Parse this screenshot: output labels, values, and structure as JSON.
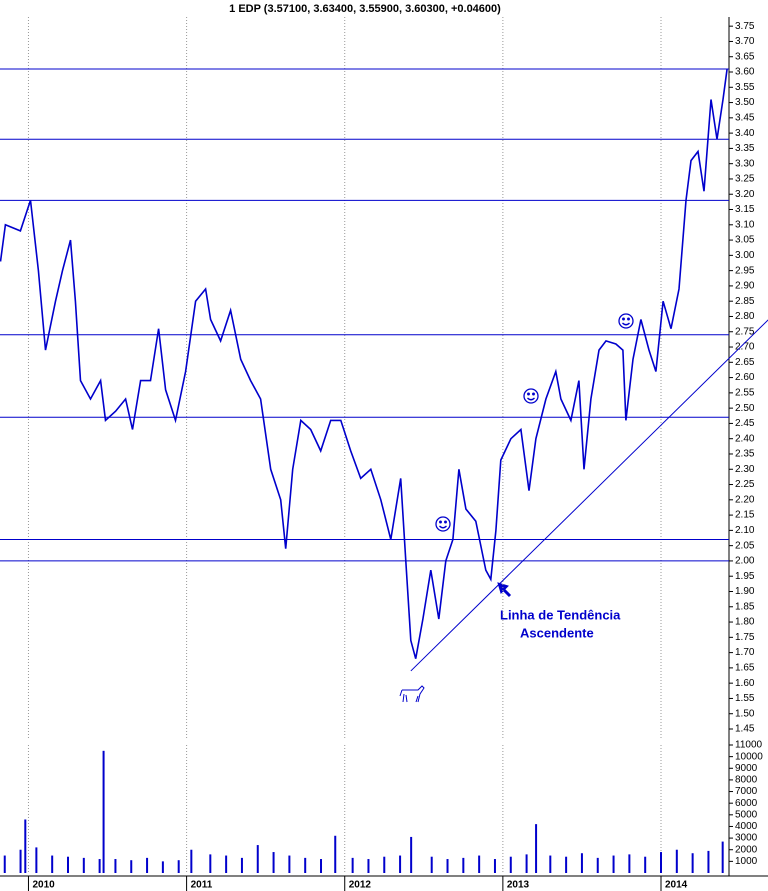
{
  "chart_data": [
    {
      "type": "line",
      "title": "1 EDP (3.57100, 3.63400, 3.55900, 3.60300, +0.04600)",
      "xlim": [
        2009.82,
        2014.43
      ],
      "xticks": [
        2010,
        2011,
        2012,
        2013,
        2014
      ],
      "ylim": [
        1.414,
        3.78
      ],
      "yticks": [
        1.45,
        {
          "value": 1.5,
          "label": "1.50"
        },
        1.55,
        {
          "value": 1.6,
          "label": "1.60"
        },
        1.65,
        {
          "value": 1.7,
          "label": "1.70"
        },
        1.75,
        {
          "value": 1.8,
          "label": "1.80"
        },
        1.85,
        {
          "value": 1.9,
          "label": "1.90"
        },
        1.95,
        {
          "value": 2,
          "label": "2.00"
        },
        2.05,
        {
          "value": 2.1,
          "label": "2.10"
        },
        2.15,
        {
          "value": 2.2,
          "label": "2.20"
        },
        2.25,
        {
          "value": 2.3,
          "label": "2.30"
        },
        2.35,
        {
          "value": 2.4,
          "label": "2.40"
        },
        2.45,
        {
          "value": 2.5,
          "label": "2.50"
        },
        2.55,
        {
          "value": 2.6,
          "label": "2.60"
        },
        2.65,
        {
          "value": 2.7,
          "label": "2.70"
        },
        2.75,
        {
          "value": 2.8,
          "label": "2.80"
        },
        2.85,
        {
          "value": 2.9,
          "label": "2.90"
        },
        2.95,
        {
          "value": 3,
          "label": "3.00"
        },
        3.05,
        {
          "value": 3.1,
          "label": "3.10"
        },
        3.15,
        {
          "value": 3.2,
          "label": "3.20"
        },
        3.25,
        {
          "value": 3.3,
          "label": "3.30"
        },
        3.35,
        {
          "value": 3.4,
          "label": "3.40"
        },
        3.45,
        {
          "value": 3.5,
          "label": "3.50"
        },
        3.55,
        {
          "value": 3.6,
          "label": "3.60"
        },
        3.65,
        {
          "value": 3.7,
          "label": "3.70"
        },
        3.75
      ],
      "series": [
        {
          "color": "#0000cc",
          "x": [
            2009.823,
            2009.854,
            2009.949,
            2010.013,
            2010.063,
            2010.108,
            2010.171,
            2010.215,
            2010.266,
            2010.297,
            2010.329,
            2010.392,
            2010.456,
            2010.487,
            2010.551,
            2010.614,
            2010.658,
            2010.709,
            2010.772,
            2010.823,
            2010.867,
            2010.93,
            2010.994,
            2011.057,
            2011.12,
            2011.152,
            2011.215,
            2011.278,
            2011.342,
            2011.405,
            2011.468,
            2011.532,
            2011.595,
            2011.627,
            2011.671,
            2011.722,
            2011.785,
            2011.848,
            2011.911,
            2011.975,
            2012.038,
            2012.101,
            2012.165,
            2012.228,
            2012.291,
            2012.354,
            2012.386,
            2012.418,
            2012.449,
            2012.494,
            2012.544,
            2012.595,
            2012.639,
            2012.684,
            2012.722,
            2012.766,
            2012.829,
            2012.892,
            2012.924,
            2012.956,
            2012.987,
            2013.051,
            2013.114,
            2013.165,
            2013.209,
            2013.272,
            2013.335,
            2013.367,
            2013.43,
            2013.481,
            2013.513,
            2013.557,
            2013.608,
            2013.652,
            2013.715,
            2013.759,
            2013.778,
            2013.823,
            2013.873,
            2013.924,
            2013.968,
            2014.013,
            2014.063,
            2014.114,
            2014.158,
            2014.19,
            2014.234,
            2014.272,
            2014.316,
            2014.354,
            2014.392,
            2014.418
          ],
          "values": [
            2.98,
            3.1,
            3.08,
            3.18,
            2.95,
            2.69,
            2.85,
            2.95,
            3.05,
            2.85,
            2.59,
            2.53,
            2.59,
            2.46,
            2.49,
            2.53,
            2.43,
            2.59,
            2.59,
            2.76,
            2.56,
            2.46,
            2.62,
            2.85,
            2.89,
            2.79,
            2.72,
            2.82,
            2.66,
            2.59,
            2.53,
            2.3,
            2.2,
            2.04,
            2.3,
            2.46,
            2.43,
            2.36,
            2.46,
            2.46,
            2.36,
            2.27,
            2.3,
            2.2,
            2.07,
            2.27,
            2.0,
            1.74,
            1.68,
            1.81,
            1.97,
            1.81,
            2.0,
            2.07,
            2.3,
            2.17,
            2.13,
            1.97,
            1.94,
            2.1,
            2.33,
            2.4,
            2.43,
            2.23,
            2.4,
            2.53,
            2.62,
            2.53,
            2.46,
            2.59,
            2.3,
            2.53,
            2.69,
            2.72,
            2.71,
            2.69,
            2.46,
            2.66,
            2.79,
            2.69,
            2.62,
            2.85,
            2.76,
            2.89,
            3.18,
            3.31,
            3.34,
            3.21,
            3.51,
            3.38,
            3.51,
            3.61
          ]
        }
      ],
      "hlines": [
        3.61,
        3.38,
        3.18,
        2.74,
        2.47,
        2.07,
        2.0
      ],
      "trendline": [
        [
          2012.418,
          1.64
        ],
        [
          2014.68,
          2.79
        ]
      ],
      "annotation": [
        "Linha de Tendência",
        "Ascendente"
      ]
    },
    {
      "type": "bar",
      "xlim": [
        2009.82,
        2014.43
      ],
      "xticks": [
        2010,
        2011,
        2012,
        2013,
        2014
      ],
      "ylim": [
        0,
        11000
      ],
      "yticks": [
        1000,
        2000,
        3000,
        4000,
        5000,
        6000,
        7000,
        8000,
        9000,
        10000,
        11000
      ],
      "color": "#0000cc",
      "x": [
        2009.85,
        2009.95,
        2009.98,
        2010.05,
        2010.15,
        2010.25,
        2010.35,
        2010.45,
        2010.475,
        2010.55,
        2010.65,
        2010.75,
        2010.85,
        2010.95,
        2011.03,
        2011.15,
        2011.25,
        2011.35,
        2011.45,
        2011.55,
        2011.65,
        2011.75,
        2011.85,
        2011.94,
        2012.05,
        2012.15,
        2012.25,
        2012.35,
        2012.42,
        2012.55,
        2012.65,
        2012.75,
        2012.85,
        2012.95,
        2013.05,
        2013.15,
        2013.21,
        2013.3,
        2013.4,
        2013.5,
        2013.6,
        2013.7,
        2013.8,
        2013.9,
        2014.0,
        2014.1,
        2014.2,
        2014.3,
        2014.39
      ],
      "values": [
        1500,
        2000,
        4600,
        2200,
        1500,
        1400,
        1300,
        1200,
        10500,
        1200,
        1100,
        1300,
        1000,
        1100,
        2000,
        1600,
        1500,
        1300,
        2400,
        1800,
        1500,
        1300,
        1200,
        3200,
        1300,
        1200,
        1400,
        1500,
        3100,
        1400,
        1200,
        1300,
        1500,
        1200,
        1400,
        1600,
        4200,
        1500,
        1400,
        1700,
        1300,
        1500,
        1600,
        1400,
        1800,
        2000,
        1700,
        1900,
        2700
      ]
    }
  ]
}
